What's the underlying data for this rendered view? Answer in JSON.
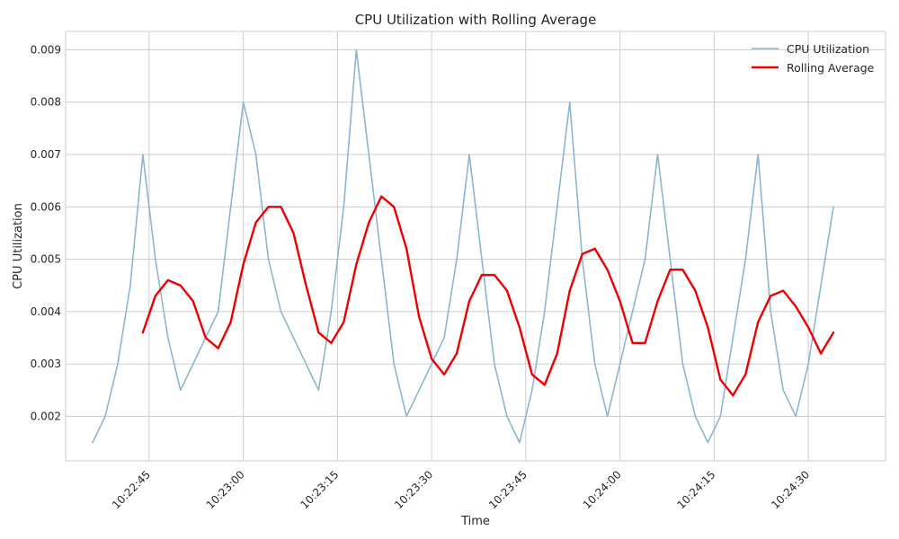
{
  "chart_data": {
    "type": "line",
    "title": "CPU Utilization with Rolling Average",
    "xlabel": "Time",
    "ylabel": "CPU Utilization",
    "x_ticks": [
      {
        "t": 45,
        "label": "10:22:45"
      },
      {
        "t": 60,
        "label": "10:23:00"
      },
      {
        "t": 75,
        "label": "10:23:15"
      },
      {
        "t": 90,
        "label": "10:23:30"
      },
      {
        "t": 105,
        "label": "10:23:45"
      },
      {
        "t": 120,
        "label": "10:24:00"
      },
      {
        "t": 135,
        "label": "10:24:15"
      },
      {
        "t": 150,
        "label": "10:24:30"
      }
    ],
    "y_ticks": [
      0.002,
      0.003,
      0.004,
      0.005,
      0.006,
      0.007,
      0.008,
      0.009
    ],
    "xlim": [
      31.7,
      162.3
    ],
    "ylim": [
      0.00115,
      0.00935
    ],
    "grid": true,
    "legend_position": "top-right",
    "series": [
      {
        "name": "CPU Utilization",
        "color": "#8ab6cf",
        "line_width": 1.6,
        "x": [
          36,
          38,
          40,
          42,
          44,
          46,
          48,
          50,
          52,
          54,
          56,
          58,
          60,
          62,
          64,
          66,
          68,
          70,
          72,
          74,
          76,
          78,
          80,
          82,
          84,
          86,
          88,
          90,
          92,
          94,
          96,
          98,
          100,
          102,
          104,
          106,
          108,
          110,
          112,
          114,
          116,
          118,
          120,
          122,
          124,
          126,
          128,
          130,
          132,
          134,
          136,
          138,
          140,
          142,
          144,
          146,
          148,
          150,
          152,
          154
        ],
        "y": [
          0.0015,
          0.002,
          0.003,
          0.0045,
          0.007,
          0.005,
          0.0035,
          0.0025,
          0.003,
          0.0035,
          0.004,
          0.006,
          0.008,
          0.007,
          0.005,
          0.004,
          0.0035,
          0.003,
          0.0025,
          0.004,
          0.006,
          0.009,
          0.007,
          0.005,
          0.003,
          0.002,
          0.0025,
          0.003,
          0.0035,
          0.005,
          0.007,
          0.005,
          0.003,
          0.002,
          0.0015,
          0.0025,
          0.004,
          0.006,
          0.008,
          0.005,
          0.003,
          0.002,
          0.003,
          0.004,
          0.005,
          0.007,
          0.005,
          0.003,
          0.002,
          0.0015,
          0.002,
          0.0035,
          0.005,
          0.007,
          0.004,
          0.0025,
          0.002,
          0.003,
          0.0045,
          0.006
        ]
      },
      {
        "name": "Rolling Average",
        "color": "#ee0000",
        "line_width": 2.4,
        "x": [
          44,
          46,
          48,
          50,
          52,
          54,
          56,
          58,
          60,
          62,
          64,
          66,
          68,
          70,
          72,
          74,
          76,
          78,
          80,
          82,
          84,
          86,
          88,
          90,
          92,
          94,
          96,
          98,
          100,
          102,
          104,
          106,
          108,
          110,
          112,
          114,
          116,
          118,
          120,
          122,
          124,
          126,
          128,
          130,
          132,
          134,
          136,
          138,
          140,
          142,
          144,
          146,
          148,
          150,
          152,
          154
        ],
        "y": [
          0.0036,
          0.0043,
          0.0046,
          0.0045,
          0.0042,
          0.0035,
          0.0033,
          0.0038,
          0.0049,
          0.0057,
          0.006,
          0.006,
          0.0055,
          0.0045,
          0.0036,
          0.0034,
          0.0038,
          0.0049,
          0.0057,
          0.0062,
          0.006,
          0.0052,
          0.0039,
          0.0031,
          0.0028,
          0.0032,
          0.0042,
          0.0047,
          0.0047,
          0.0044,
          0.0037,
          0.0028,
          0.0026,
          0.0032,
          0.0044,
          0.0051,
          0.0052,
          0.0048,
          0.0042,
          0.0034,
          0.0034,
          0.0042,
          0.0048,
          0.0048,
          0.0044,
          0.0037,
          0.0027,
          0.0024,
          0.0028,
          0.0038,
          0.0043,
          0.0044,
          0.0041,
          0.0037,
          0.0032,
          0.0036
        ]
      }
    ]
  },
  "style": {
    "grid_color": "#cccccc",
    "frame_color": "#cccccc",
    "text_color": "#262626"
  }
}
